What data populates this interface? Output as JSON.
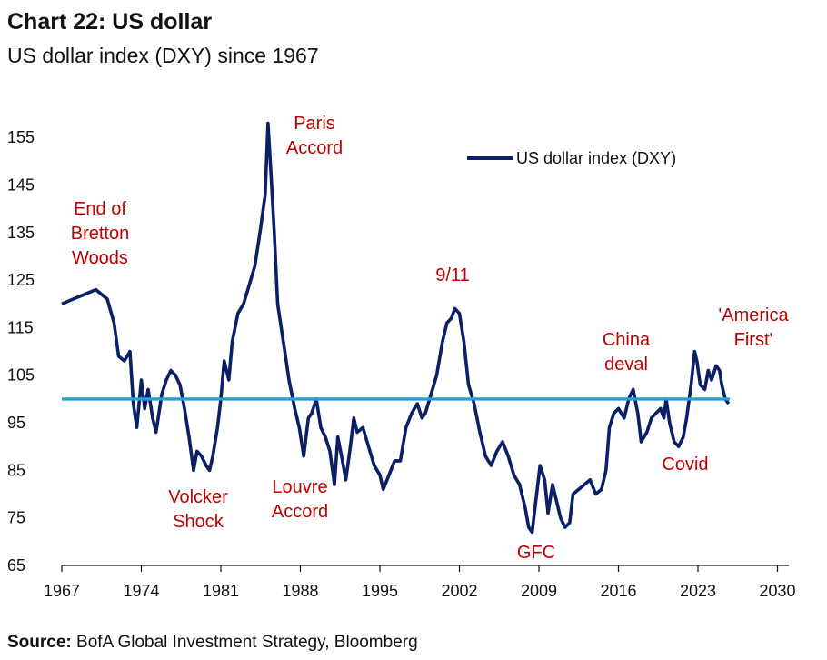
{
  "header": {
    "title": "Chart 22: US dollar",
    "subtitle": "US dollar index (DXY) since 1967"
  },
  "footer": {
    "source_label": "Source:",
    "source_text": "BofA Global Investment Strategy, Bloomberg"
  },
  "colors": {
    "series": "#0b1f66",
    "reference_line": "#1fa2d8",
    "annotation": "#c00000"
  },
  "chart_data": {
    "type": "line",
    "title": "",
    "xlabel": "",
    "ylabel": "",
    "xlim": [
      1967,
      2031
    ],
    "ylim": [
      65,
      160
    ],
    "x_ticks": [
      1967,
      1974,
      1981,
      1988,
      1995,
      2002,
      2009,
      2016,
      2023,
      2030
    ],
    "y_ticks": [
      65,
      75,
      85,
      95,
      105,
      115,
      125,
      135,
      145,
      155
    ],
    "grid": false,
    "legend": "top-right",
    "reference_line": {
      "y": 100
    },
    "series": [
      {
        "name": "US dollar index (DXY)",
        "x": [
          1967.0,
          1968.0,
          1969.0,
          1970.0,
          1970.5,
          1971.0,
          1971.6,
          1972.0,
          1972.5,
          1973.0,
          1973.3,
          1973.6,
          1974.0,
          1974.3,
          1974.6,
          1975.0,
          1975.3,
          1975.8,
          1976.2,
          1976.6,
          1977.0,
          1977.4,
          1977.8,
          1978.2,
          1978.6,
          1978.9,
          1979.3,
          1979.7,
          1980.0,
          1980.3,
          1980.7,
          1981.0,
          1981.3,
          1981.7,
          1982.0,
          1982.5,
          1983.0,
          1983.5,
          1984.0,
          1984.5,
          1984.9,
          1985.15,
          1985.4,
          1985.7,
          1986.0,
          1986.5,
          1987.0,
          1987.5,
          1987.9,
          1988.3,
          1988.7,
          1989.0,
          1989.4,
          1989.8,
          1990.2,
          1990.6,
          1991.0,
          1991.3,
          1991.7,
          1992.0,
          1992.4,
          1992.7,
          1993.0,
          1993.5,
          1994.0,
          1994.5,
          1995.0,
          1995.3,
          1995.8,
          1996.3,
          1996.8,
          1997.3,
          1997.8,
          1998.3,
          1998.7,
          1999.0,
          1999.5,
          2000.0,
          2000.5,
          2000.9,
          2001.3,
          2001.6,
          2002.0,
          2002.4,
          2002.8,
          2003.3,
          2003.8,
          2004.3,
          2004.8,
          2005.3,
          2005.8,
          2006.3,
          2006.8,
          2007.3,
          2007.8,
          2008.1,
          2008.4,
          2008.8,
          2009.1,
          2009.5,
          2009.8,
          2010.2,
          2010.5,
          2010.9,
          2011.3,
          2011.7,
          2012.0,
          2012.5,
          2013.0,
          2013.5,
          2014.0,
          2014.5,
          2014.9,
          2015.2,
          2015.6,
          2016.0,
          2016.5,
          2016.9,
          2017.3,
          2017.7,
          2018.0,
          2018.5,
          2018.9,
          2019.3,
          2019.7,
          2020.0,
          2020.2,
          2020.5,
          2020.9,
          2021.3,
          2021.7,
          2022.0,
          2022.4,
          2022.7,
          2022.9,
          2023.2,
          2023.6,
          2023.9,
          2024.2,
          2024.6,
          2024.9,
          2025.1,
          2025.4,
          2025.7
        ],
        "values": [
          120,
          121,
          122,
          123,
          122,
          121,
          116,
          109,
          108,
          110,
          99,
          94,
          104,
          98,
          102,
          96,
          93,
          101,
          104,
          106,
          105,
          103,
          98,
          92,
          85,
          89,
          88,
          86,
          85,
          88,
          94,
          100,
          108,
          104,
          112,
          118,
          120,
          124,
          128,
          136,
          143,
          158,
          148,
          135,
          120,
          112,
          104,
          98,
          94,
          88,
          96,
          97,
          100,
          94,
          92,
          89,
          82,
          92,
          87,
          83,
          90,
          96,
          93,
          94,
          90,
          86,
          84,
          81,
          84,
          87,
          87,
          94,
          97,
          99,
          96,
          97,
          101,
          105,
          112,
          116,
          117,
          119,
          118,
          112,
          103,
          99,
          93,
          88,
          86,
          89,
          91,
          88,
          84,
          82,
          77,
          73,
          72,
          80,
          86,
          83,
          76,
          82,
          79,
          75,
          73,
          74,
          80,
          81,
          82,
          83,
          80,
          81,
          85,
          94,
          97,
          98,
          96,
          100,
          102,
          97,
          91,
          93,
          96,
          97,
          98,
          96,
          100,
          95,
          91,
          90,
          92,
          96,
          103,
          110,
          108,
          103,
          102,
          106,
          104,
          107,
          106,
          103,
          100,
          99
        ]
      }
    ],
    "annotations": [
      {
        "lines": [
          "End of",
          "Bretton",
          "Woods"
        ]
      },
      {
        "lines": [
          "Volcker",
          "Shock"
        ]
      },
      {
        "lines": [
          "Paris",
          "Accord"
        ]
      },
      {
        "lines": [
          "Louvre",
          "Accord"
        ]
      },
      {
        "lines": [
          "9/11"
        ]
      },
      {
        "lines": [
          "GFC"
        ]
      },
      {
        "lines": [
          "China",
          "deval"
        ]
      },
      {
        "lines": [
          "Covid"
        ]
      },
      {
        "lines": [
          "'America",
          "First'"
        ]
      }
    ]
  }
}
